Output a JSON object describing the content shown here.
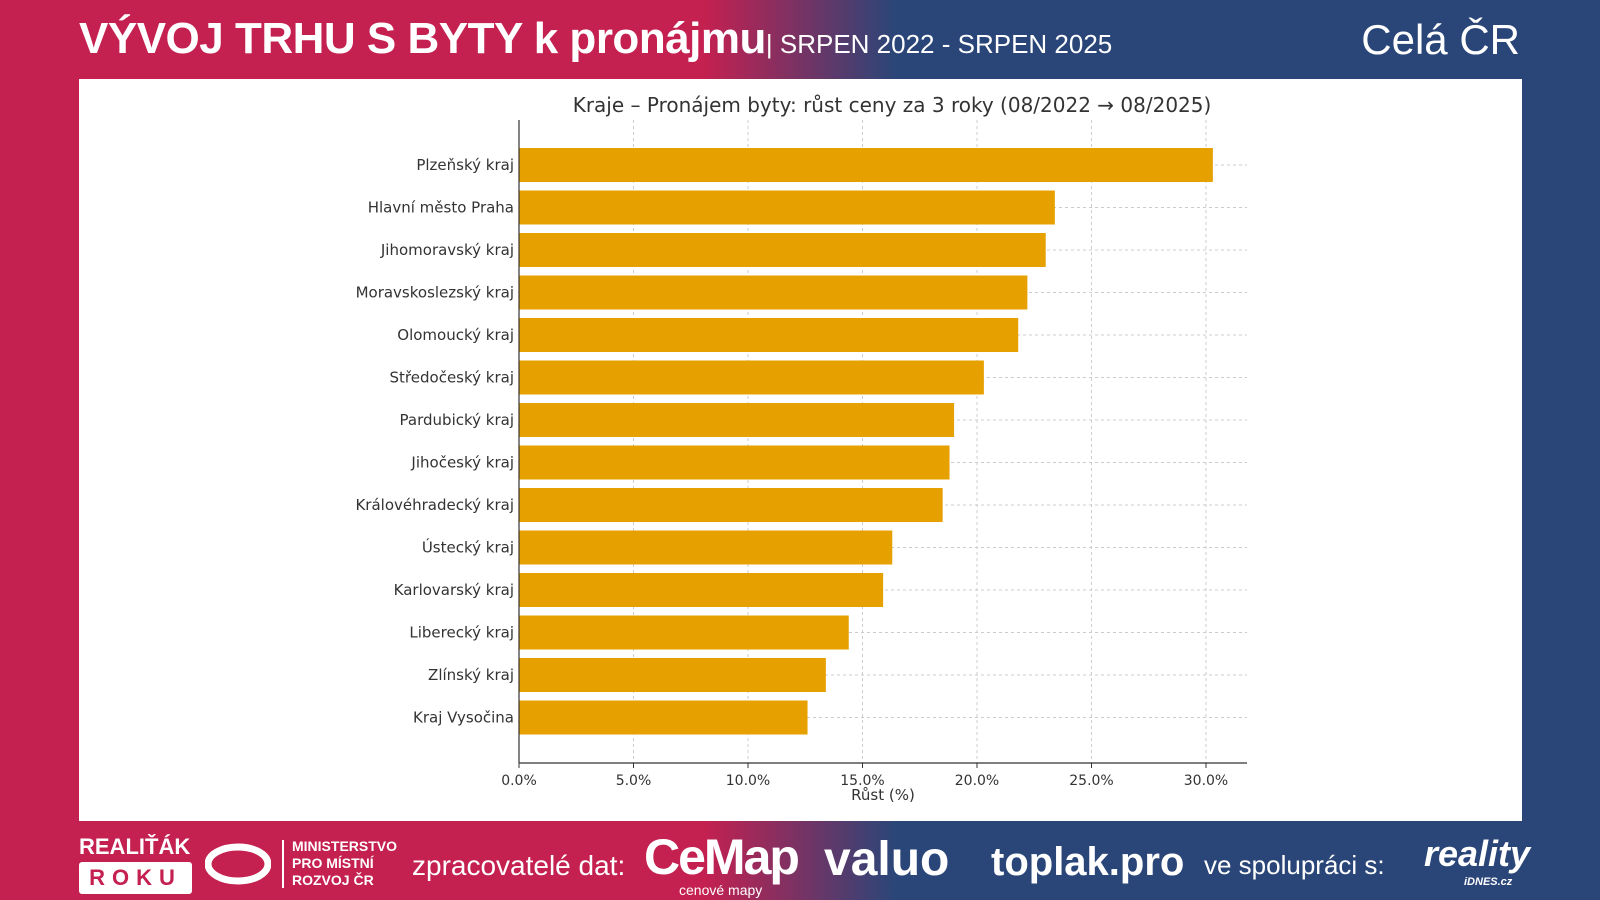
{
  "header": {
    "title": "VÝVOJ TRHU S BYTY k pronájmu",
    "subtitle": "| SRPEN 2022 - SRPEN 2025",
    "region": "Celá ČR"
  },
  "footer": {
    "logo1_line1": "REALIŤÁK",
    "logo1_line2": "ROKU",
    "ministry_lines": [
      "MINISTERSTVO",
      "PRO MÍSTNÍ",
      "ROZVOJ ČR"
    ],
    "processors_label": "zpracovatelé dat:",
    "cemap": "CeMap",
    "cemap_sub": "cenové mapy",
    "valuo": "valuo",
    "toplak": "toplak.pro",
    "cooperation_label": "ve spolupráci s:",
    "reality": "reality",
    "reality_sub": "iDNES.cz"
  },
  "colors": {
    "bar": "#e6a000",
    "crimson": "#c42050",
    "blue": "#2a4678"
  },
  "chart_data": {
    "type": "bar",
    "orientation": "horizontal",
    "title": "Kraje – Pronájem byty: růst ceny za 3 roky (08/2022 → 08/2025)",
    "xlabel": "Růst (%)",
    "ylabel": "",
    "xlim": [
      0,
      31.8
    ],
    "xticks": [
      0,
      5,
      10,
      15,
      20,
      25,
      30
    ],
    "xtick_labels": [
      "0.0%",
      "5.0%",
      "10.0%",
      "15.0%",
      "20.0%",
      "25.0%",
      "30.0%"
    ],
    "grid": true,
    "categories": [
      "Plzeňský kraj",
      "Hlavní město Praha",
      "Jihomoravský kraj",
      "Moravskoslezský kraj",
      "Olomoucký kraj",
      "Středočeský kraj",
      "Pardubický kraj",
      "Jihočeský kraj",
      "Královéhradecký kraj",
      "Ústecký kraj",
      "Karlovarský kraj",
      "Liberecký kraj",
      "Zlínský kraj",
      "Kraj Vysočina"
    ],
    "values": [
      30.3,
      23.4,
      23.0,
      22.2,
      21.8,
      20.3,
      19.0,
      18.8,
      18.5,
      16.3,
      15.9,
      14.4,
      13.4,
      12.6
    ]
  }
}
